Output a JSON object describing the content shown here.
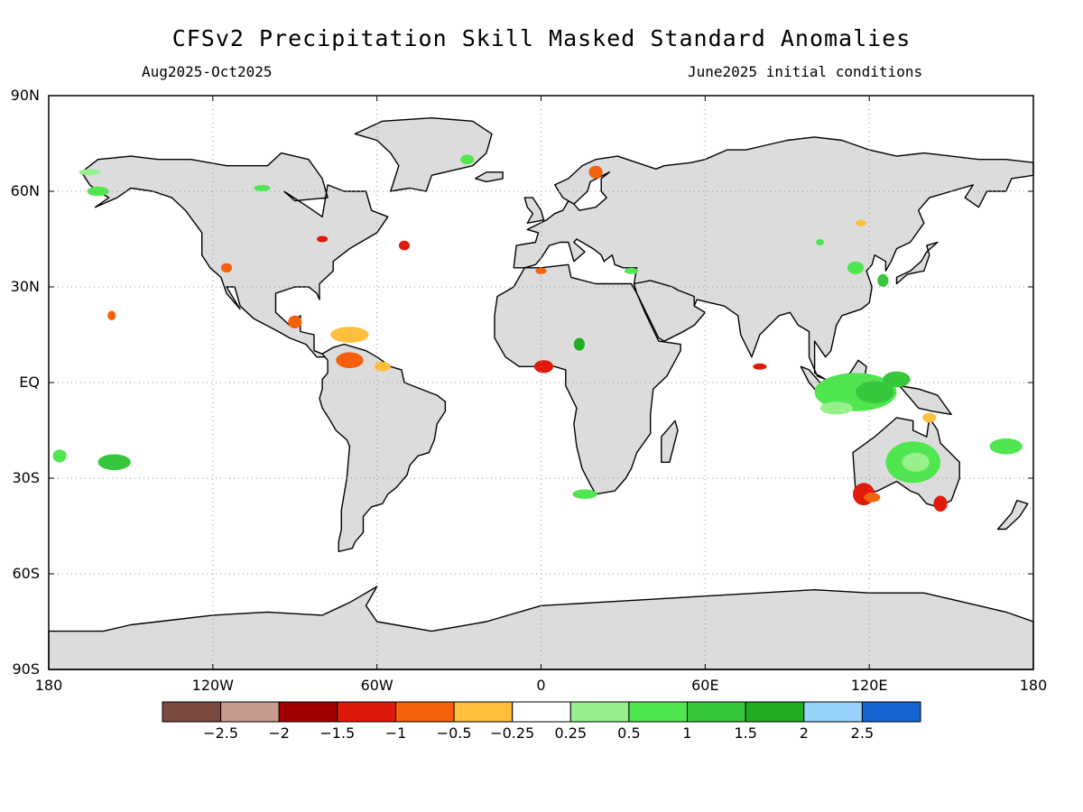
{
  "title": "CFSv2 Precipitation Skill Masked Standard Anomalies",
  "period_label": "Aug2025-Oct2025",
  "init_label": "June2025 initial conditions",
  "map": {
    "projection": "lat-lon",
    "lon_range": [
      -180,
      180
    ],
    "lat_range": [
      -90,
      90
    ],
    "grid": true,
    "land_color": "#dcdcdc",
    "ocean_color": "#ffffff",
    "coast_color": "#000000"
  },
  "lat_ticks": [
    {
      "value": 90,
      "label": "90N"
    },
    {
      "value": 60,
      "label": "60N"
    },
    {
      "value": 30,
      "label": "30N"
    },
    {
      "value": 0,
      "label": "EQ"
    },
    {
      "value": -30,
      "label": "30S"
    },
    {
      "value": -60,
      "label": "60S"
    },
    {
      "value": -90,
      "label": "90S"
    }
  ],
  "lon_ticks": [
    {
      "value": -180,
      "label": "180"
    },
    {
      "value": -120,
      "label": "120W"
    },
    {
      "value": -60,
      "label": "60W"
    },
    {
      "value": 0,
      "label": "0"
    },
    {
      "value": 60,
      "label": "60E"
    },
    {
      "value": 120,
      "label": "120E"
    },
    {
      "value": 180,
      "label": "180"
    }
  ],
  "colorbar": {
    "colors": [
      "#7a4a3f",
      "#c79a8c",
      "#a00000",
      "#e01a0a",
      "#f5600a",
      "#ffbf3c",
      "#ffffff",
      "#96f08c",
      "#50e650",
      "#36c83a",
      "#1fae21",
      "#96d2fa",
      "#1464d2"
    ],
    "labels": [
      "-2.5",
      "-2",
      "-1.5",
      "-1",
      "-0.5",
      "-0.25",
      "0.25",
      "0.5",
      "1",
      "1.5",
      "2",
      "2.5"
    ]
  },
  "anomaly_regions": [
    {
      "lon": 115,
      "lat": -3,
      "w": 30,
      "h": 12,
      "color": "#50e650"
    },
    {
      "lon": 122,
      "lat": -3,
      "w": 14,
      "h": 7,
      "color": "#36c83a"
    },
    {
      "lon": 108,
      "lat": -8,
      "w": 12,
      "h": 4,
      "color": "#96f08c"
    },
    {
      "lon": 130,
      "lat": 1,
      "w": 10,
      "h": 5,
      "color": "#36c83a"
    },
    {
      "lon": 136,
      "lat": -25,
      "w": 20,
      "h": 13,
      "color": "#50e650"
    },
    {
      "lon": 137,
      "lat": -25,
      "w": 10,
      "h": 6,
      "color": "#96f08c"
    },
    {
      "lon": 118,
      "lat": -35,
      "w": 8,
      "h": 7,
      "color": "#e01a0a"
    },
    {
      "lon": 121,
      "lat": -36,
      "w": 6,
      "h": 3,
      "color": "#f5600a"
    },
    {
      "lon": 146,
      "lat": -38,
      "w": 5,
      "h": 5,
      "color": "#e01a0a"
    },
    {
      "lon": 142,
      "lat": -11,
      "w": 5,
      "h": 3,
      "color": "#ffbf3c"
    },
    {
      "lon": 170,
      "lat": -20,
      "w": 12,
      "h": 5,
      "color": "#50e650"
    },
    {
      "lon": -156,
      "lat": -25,
      "w": 12,
      "h": 5,
      "color": "#36c83a"
    },
    {
      "lon": -176,
      "lat": -23,
      "w": 5,
      "h": 4,
      "color": "#50e650"
    },
    {
      "lon": 1,
      "lat": 5,
      "w": 7,
      "h": 4,
      "color": "#e01a0a"
    },
    {
      "lon": 14,
      "lat": 12,
      "w": 4,
      "h": 4,
      "color": "#1fae21"
    },
    {
      "lon": 16,
      "lat": -35,
      "w": 9,
      "h": 3,
      "color": "#50e650"
    },
    {
      "lon": -70,
      "lat": 15,
      "w": 14,
      "h": 5,
      "color": "#ffbf3c"
    },
    {
      "lon": -70,
      "lat": 7,
      "w": 10,
      "h": 5,
      "color": "#f5600a"
    },
    {
      "lon": -58,
      "lat": 5,
      "w": 6,
      "h": 3,
      "color": "#ffbf3c"
    },
    {
      "lon": -90,
      "lat": 19,
      "w": 5,
      "h": 4,
      "color": "#f5600a"
    },
    {
      "lon": -115,
      "lat": 36,
      "w": 4,
      "h": 3,
      "color": "#f5600a"
    },
    {
      "lon": -157,
      "lat": 21,
      "w": 3,
      "h": 3,
      "color": "#f5600a"
    },
    {
      "lon": -80,
      "lat": 45,
      "w": 4,
      "h": 2,
      "color": "#e01a0a"
    },
    {
      "lon": -50,
      "lat": 43,
      "w": 4,
      "h": 3,
      "color": "#e01a0a"
    },
    {
      "lon": -102,
      "lat": 61,
      "w": 6,
      "h": 2,
      "color": "#50e650"
    },
    {
      "lon": -162,
      "lat": 60,
      "w": 8,
      "h": 3,
      "color": "#50e650"
    },
    {
      "lon": -165,
      "lat": 66,
      "w": 8,
      "h": 2,
      "color": "#96f08c"
    },
    {
      "lon": 115,
      "lat": 36,
      "w": 6,
      "h": 4,
      "color": "#50e650"
    },
    {
      "lon": 125,
      "lat": 32,
      "w": 4,
      "h": 4,
      "color": "#36c83a"
    },
    {
      "lon": 80,
      "lat": 5,
      "w": 5,
      "h": 2,
      "color": "#e01a0a"
    },
    {
      "lon": 20,
      "lat": 66,
      "w": 5,
      "h": 4,
      "color": "#f5600a"
    },
    {
      "lon": -27,
      "lat": 70,
      "w": 5,
      "h": 3,
      "color": "#50e650"
    },
    {
      "lon": 0,
      "lat": 35,
      "w": 4,
      "h": 2,
      "color": "#f5600a"
    },
    {
      "lon": 33,
      "lat": 35,
      "w": 5,
      "h": 2,
      "color": "#50e650"
    },
    {
      "lon": 117,
      "lat": 50,
      "w": 4,
      "h": 2,
      "color": "#ffbf3c"
    },
    {
      "lon": 102,
      "lat": 44,
      "w": 3,
      "h": 2,
      "color": "#50e650"
    }
  ]
}
